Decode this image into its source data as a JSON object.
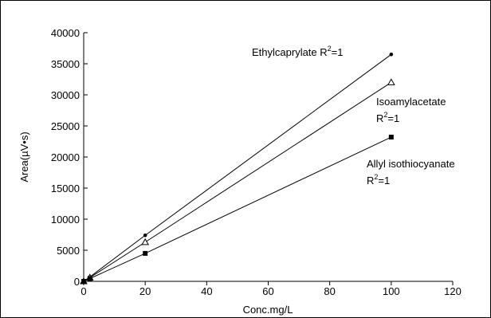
{
  "chart_data": {
    "type": "line",
    "xlabel": "Conc.mg/L",
    "ylabel": "Area(µV•s)",
    "xlim": [
      0,
      120
    ],
    "ylim": [
      0,
      40000
    ],
    "xticks": [
      0,
      20,
      40,
      60,
      80,
      100,
      120
    ],
    "yticks": [
      0,
      5000,
      10000,
      15000,
      20000,
      25000,
      30000,
      35000,
      40000
    ],
    "grid": false,
    "series": [
      {
        "name": "Ethylcaprylate",
        "marker": "circle",
        "x": [
          0,
          2,
          20,
          100
        ],
        "values": [
          0,
          700,
          7400,
          36500
        ]
      },
      {
        "name": "Isoamylacetate",
        "marker": "triangle",
        "x": [
          0,
          2,
          20,
          100
        ],
        "values": [
          0,
          600,
          6300,
          32000
        ]
      },
      {
        "name": "Allyl isothiocyanate",
        "marker": "square",
        "x": [
          0,
          2,
          20,
          100
        ],
        "values": [
          0,
          450,
          4500,
          23200
        ]
      }
    ],
    "annotations": [
      {
        "series": 0,
        "lines": [
          "Ethylcaprylate R",
          "=1"
        ],
        "sup": "2"
      },
      {
        "series": 1,
        "lines": [
          "Isoamylacetate",
          "R",
          "=1"
        ],
        "sup": "2"
      },
      {
        "series": 2,
        "lines": [
          "Allyl isothiocyanate",
          "R",
          "=1"
        ],
        "sup": "2"
      }
    ]
  }
}
